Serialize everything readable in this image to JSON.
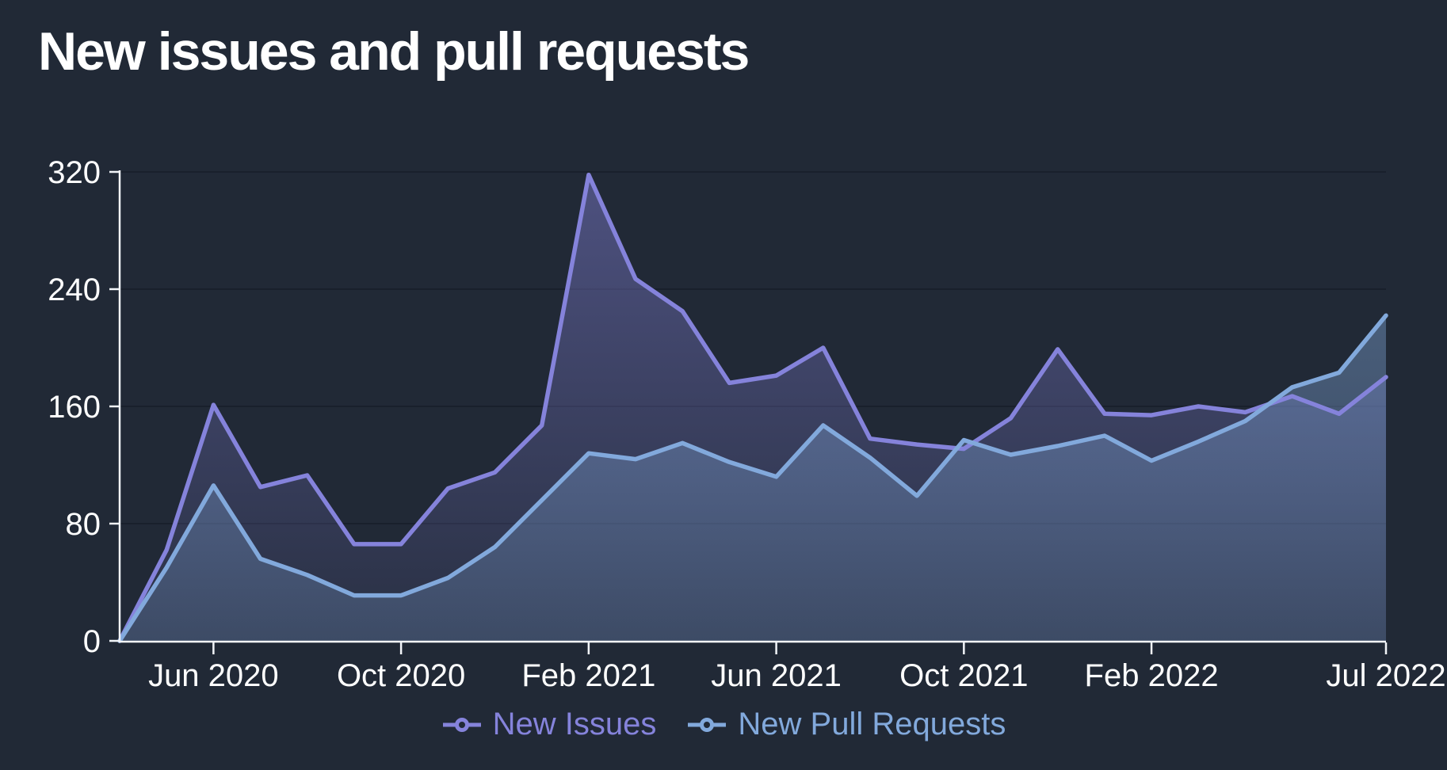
{
  "page": {
    "title": "New issues and pull requests"
  },
  "colors": {
    "background": "#212936",
    "text": "#ffffff",
    "axis": "#f2f5f9",
    "grid": "#19202c",
    "issues_line": "#8583db",
    "pulls_line": "#82a9dc"
  },
  "chart_data": {
    "type": "area",
    "title": "New issues and pull requests",
    "xlabel": "",
    "ylabel": "",
    "ylim": [
      0,
      320
    ],
    "y_ticks": [
      0,
      80,
      160,
      240,
      320
    ],
    "grid": "horizontal",
    "legend_position": "bottom",
    "x": [
      "Apr 2020",
      "May 2020",
      "Jun 2020",
      "Jul 2020",
      "Aug 2020",
      "Sep 2020",
      "Oct 2020",
      "Nov 2020",
      "Dec 2020",
      "Jan 2021",
      "Feb 2021",
      "Mar 2021",
      "Apr 2021",
      "May 2021",
      "Jun 2021",
      "Jul 2021",
      "Aug 2021",
      "Sep 2021",
      "Oct 2021",
      "Nov 2021",
      "Dec 2021",
      "Jan 2022",
      "Feb 2022",
      "Mar 2022",
      "Apr 2022",
      "May 2022",
      "Jun 2022",
      "Jul 2022"
    ],
    "x_tick_labels": [
      "Jun 2020",
      "Oct 2020",
      "Feb 2021",
      "Jun 2021",
      "Oct 2021",
      "Feb 2022",
      "Jul 2022"
    ],
    "x_tick_indices": [
      2,
      6,
      10,
      14,
      18,
      22,
      27
    ],
    "series": [
      {
        "name": "New Issues",
        "color": "#8583db",
        "values": [
          0,
          62,
          161,
          105,
          113,
          66,
          66,
          104,
          115,
          147,
          318,
          247,
          225,
          176,
          181,
          200,
          138,
          134,
          131,
          152,
          199,
          155,
          154,
          160,
          156,
          167,
          155,
          180
        ]
      },
      {
        "name": "New Pull Requests",
        "color": "#82a9dc",
        "values": [
          0,
          50,
          106,
          56,
          45,
          31,
          31,
          43,
          64,
          96,
          128,
          124,
          135,
          122,
          112,
          147,
          125,
          99,
          137,
          127,
          133,
          140,
          123,
          136,
          150,
          173,
          183,
          222
        ]
      }
    ]
  }
}
